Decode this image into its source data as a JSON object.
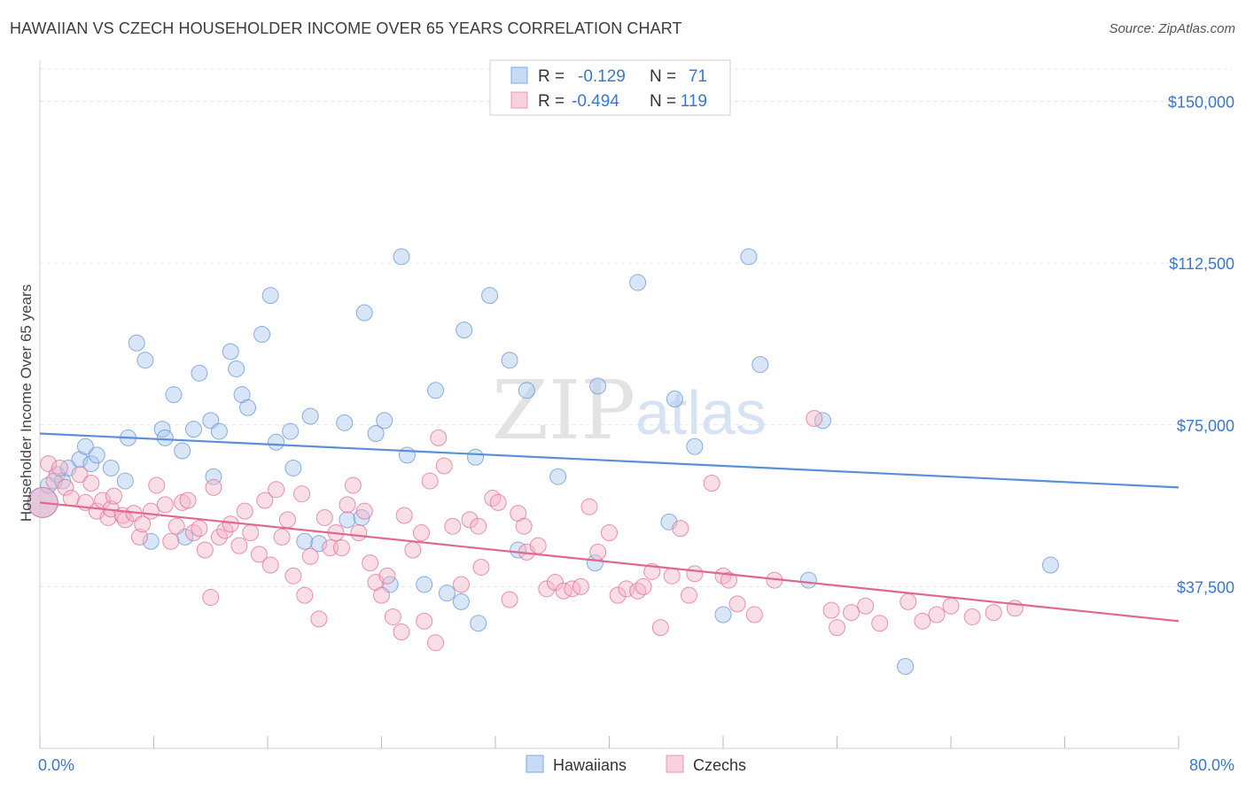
{
  "title": "HAWAIIAN VS CZECH HOUSEHOLDER INCOME OVER 65 YEARS CORRELATION CHART",
  "source": "Source: ZipAtlas.com",
  "watermark": {
    "zip": "ZIP",
    "atlas": "atlas"
  },
  "legend": {
    "rows": [
      {
        "r_label": "R =",
        "r_value": "-0.129",
        "n_label": "N =",
        "n_value": "71",
        "color": "#a8c8ee"
      },
      {
        "r_label": "R =",
        "r_value": "-0.494",
        "n_label": "N =",
        "n_value": "119",
        "color": "#f4b5c8"
      }
    ]
  },
  "bottom_legend": [
    {
      "label": "Hawaiians",
      "color": "#a8c8ee"
    },
    {
      "label": "Czechs",
      "color": "#f4b5c8"
    }
  ],
  "chart_data": {
    "type": "scatter",
    "ylabel": "Householder Income Over 65 years",
    "xlim": [
      0,
      80
    ],
    "ylim": [
      0,
      157500
    ],
    "x_tick_labels": [
      "0.0%",
      "80.0%"
    ],
    "y_ticks": [
      37500,
      75000,
      112500,
      150000
    ],
    "y_tick_labels": [
      "$37,500",
      "$75,000",
      "$112,500",
      "$150,000"
    ],
    "grid": true,
    "series": [
      {
        "name": "Hawaiians",
        "color": "#5b8fd6",
        "fill": "#a8c8ee",
        "trend": [
          [
            0,
            73000
          ],
          [
            80,
            60500
          ]
        ],
        "points": [
          [
            0.2,
            57000
          ],
          [
            0.6,
            61000
          ],
          [
            1.2,
            63500
          ],
          [
            1.6,
            62000
          ],
          [
            2.0,
            65000
          ],
          [
            2.8,
            67000
          ],
          [
            3.2,
            70000
          ],
          [
            3.6,
            66000
          ],
          [
            4.0,
            68000
          ],
          [
            5.0,
            65000
          ],
          [
            6.0,
            62000
          ],
          [
            6.2,
            72000
          ],
          [
            6.8,
            94000
          ],
          [
            7.4,
            90000
          ],
          [
            7.8,
            48000
          ],
          [
            8.6,
            74000
          ],
          [
            8.8,
            72000
          ],
          [
            9.4,
            82000
          ],
          [
            10.0,
            69000
          ],
          [
            10.2,
            49000
          ],
          [
            10.8,
            74000
          ],
          [
            11.2,
            87000
          ],
          [
            12.0,
            76000
          ],
          [
            12.2,
            63000
          ],
          [
            12.6,
            73500
          ],
          [
            13.4,
            92000
          ],
          [
            13.8,
            88000
          ],
          [
            14.2,
            82000
          ],
          [
            14.6,
            79000
          ],
          [
            15.6,
            96000
          ],
          [
            16.2,
            105000
          ],
          [
            16.6,
            71000
          ],
          [
            17.6,
            73500
          ],
          [
            17.8,
            65000
          ],
          [
            18.6,
            48000
          ],
          [
            19.0,
            77000
          ],
          [
            19.6,
            47500
          ],
          [
            21.4,
            75500
          ],
          [
            21.6,
            53000
          ],
          [
            22.6,
            53500
          ],
          [
            22.8,
            101000
          ],
          [
            23.6,
            73000
          ],
          [
            24.2,
            76000
          ],
          [
            24.6,
            38000
          ],
          [
            25.4,
            114000
          ],
          [
            25.8,
            68000
          ],
          [
            27.0,
            38000
          ],
          [
            27.8,
            83000
          ],
          [
            28.6,
            36000
          ],
          [
            29.6,
            34000
          ],
          [
            29.8,
            97000
          ],
          [
            30.6,
            67500
          ],
          [
            30.8,
            29000
          ],
          [
            31.6,
            105000
          ],
          [
            33.0,
            90000
          ],
          [
            33.6,
            46000
          ],
          [
            34.2,
            83000
          ],
          [
            36.4,
            63000
          ],
          [
            39.0,
            43000
          ],
          [
            39.2,
            84000
          ],
          [
            42.0,
            108000
          ],
          [
            44.2,
            52500
          ],
          [
            44.6,
            81000
          ],
          [
            46.0,
            70000
          ],
          [
            48.0,
            31000
          ],
          [
            49.8,
            114000
          ],
          [
            50.6,
            89000
          ],
          [
            54.0,
            39000
          ],
          [
            55.0,
            76000
          ],
          [
            60.8,
            19000
          ],
          [
            71.0,
            42500
          ]
        ]
      },
      {
        "name": "Czechs",
        "color": "#e0678f",
        "fill": "#f4b5c8",
        "trend": [
          [
            0,
            57000
          ],
          [
            80,
            29500
          ]
        ],
        "points": [
          [
            0.2,
            57000
          ],
          [
            0.6,
            66000
          ],
          [
            1.0,
            62000
          ],
          [
            1.4,
            65000
          ],
          [
            1.8,
            60500
          ],
          [
            2.2,
            58000
          ],
          [
            2.8,
            63500
          ],
          [
            3.2,
            57000
          ],
          [
            3.6,
            61500
          ],
          [
            4.0,
            55000
          ],
          [
            4.4,
            57500
          ],
          [
            4.8,
            53500
          ],
          [
            5.0,
            55500
          ],
          [
            5.2,
            58500
          ],
          [
            5.8,
            54000
          ],
          [
            6.0,
            53000
          ],
          [
            6.6,
            54500
          ],
          [
            7.0,
            49000
          ],
          [
            7.2,
            52000
          ],
          [
            7.8,
            55000
          ],
          [
            8.2,
            61000
          ],
          [
            8.8,
            56500
          ],
          [
            9.2,
            48000
          ],
          [
            9.6,
            51500
          ],
          [
            10.0,
            57000
          ],
          [
            10.4,
            57500
          ],
          [
            10.8,
            50000
          ],
          [
            11.2,
            51000
          ],
          [
            11.6,
            46000
          ],
          [
            12.0,
            35000
          ],
          [
            12.2,
            60500
          ],
          [
            12.6,
            49000
          ],
          [
            13.0,
            50500
          ],
          [
            13.4,
            52000
          ],
          [
            14.0,
            47000
          ],
          [
            14.4,
            55000
          ],
          [
            14.8,
            50000
          ],
          [
            15.4,
            45000
          ],
          [
            15.8,
            57500
          ],
          [
            16.2,
            42500
          ],
          [
            16.6,
            60000
          ],
          [
            17.0,
            49000
          ],
          [
            17.4,
            53000
          ],
          [
            17.8,
            40000
          ],
          [
            18.4,
            59000
          ],
          [
            18.6,
            35500
          ],
          [
            19.0,
            44500
          ],
          [
            19.6,
            30000
          ],
          [
            20.0,
            53500
          ],
          [
            20.4,
            46500
          ],
          [
            20.8,
            50000
          ],
          [
            21.2,
            46500
          ],
          [
            21.6,
            56500
          ],
          [
            22.0,
            61000
          ],
          [
            22.4,
            50000
          ],
          [
            22.8,
            55000
          ],
          [
            23.2,
            43000
          ],
          [
            23.6,
            38500
          ],
          [
            24.0,
            35500
          ],
          [
            24.4,
            40000
          ],
          [
            24.8,
            30500
          ],
          [
            25.4,
            27000
          ],
          [
            25.6,
            54000
          ],
          [
            26.2,
            46000
          ],
          [
            26.8,
            50000
          ],
          [
            27.0,
            29500
          ],
          [
            27.4,
            62000
          ],
          [
            27.8,
            24500
          ],
          [
            28.0,
            72000
          ],
          [
            28.4,
            65500
          ],
          [
            29.0,
            51500
          ],
          [
            29.6,
            38000
          ],
          [
            30.2,
            53000
          ],
          [
            30.8,
            51500
          ],
          [
            31.0,
            42000
          ],
          [
            31.8,
            58000
          ],
          [
            32.2,
            57000
          ],
          [
            33.0,
            34500
          ],
          [
            33.6,
            54500
          ],
          [
            34.0,
            51500
          ],
          [
            34.2,
            45500
          ],
          [
            35.0,
            47000
          ],
          [
            35.6,
            37000
          ],
          [
            36.2,
            38500
          ],
          [
            36.8,
            36500
          ],
          [
            37.4,
            37000
          ],
          [
            38.0,
            37500
          ],
          [
            38.6,
            56000
          ],
          [
            39.2,
            45500
          ],
          [
            40.0,
            50000
          ],
          [
            40.6,
            35500
          ],
          [
            41.2,
            37000
          ],
          [
            42.0,
            36500
          ],
          [
            42.4,
            37500
          ],
          [
            43.0,
            41000
          ],
          [
            43.6,
            28000
          ],
          [
            44.4,
            40000
          ],
          [
            45.0,
            51000
          ],
          [
            45.6,
            35500
          ],
          [
            46.0,
            40500
          ],
          [
            47.2,
            61500
          ],
          [
            48.0,
            40000
          ],
          [
            48.4,
            39000
          ],
          [
            49.0,
            33500
          ],
          [
            50.2,
            31000
          ],
          [
            51.6,
            39000
          ],
          [
            54.4,
            76500
          ],
          [
            55.6,
            32000
          ],
          [
            56.0,
            28000
          ],
          [
            59.0,
            29000
          ],
          [
            61.0,
            34000
          ],
          [
            62.0,
            29500
          ],
          [
            63.0,
            31000
          ],
          [
            64.0,
            33000
          ],
          [
            65.5,
            30500
          ],
          [
            67.0,
            31500
          ],
          [
            68.5,
            32500
          ],
          [
            58.0,
            33000
          ],
          [
            57.0,
            31500
          ]
        ]
      }
    ]
  }
}
